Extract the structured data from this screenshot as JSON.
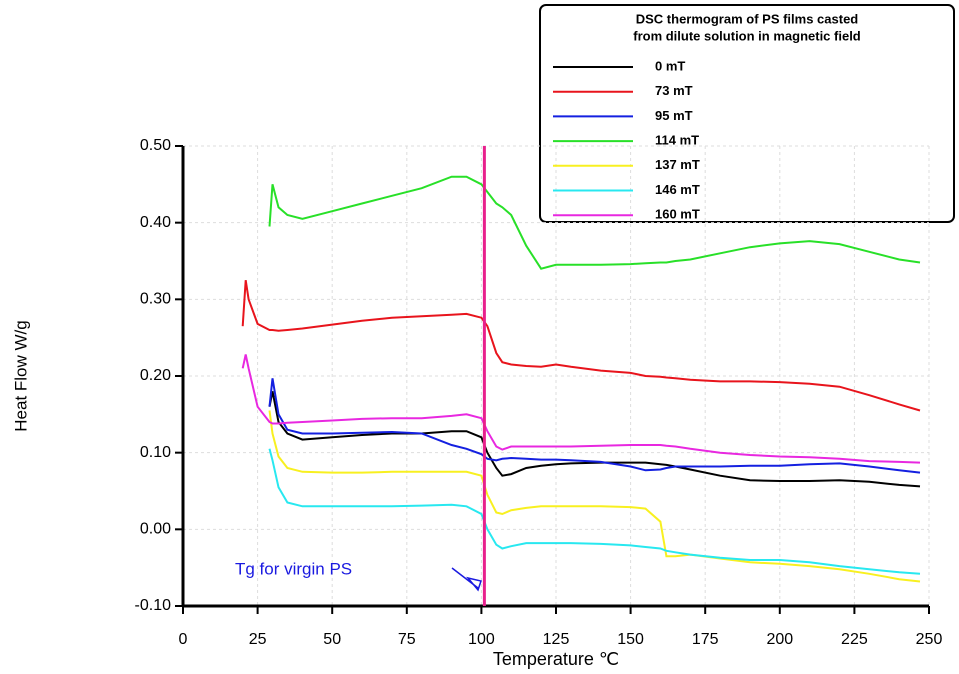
{
  "chart_data": {
    "type": "line",
    "legend_title": [
      "DSC thermogram of PS films casted",
      "from dilute solution in magnetic field"
    ],
    "x_label": "Temperature ℃",
    "y_label": "Heat Flow  W/g",
    "annotation": "Tg for virgin PS",
    "reference_line_x": 101,
    "reference_line_color": "#e8208c",
    "xlim": [
      0,
      250
    ],
    "ylim": [
      -0.1,
      0.5
    ],
    "xticks": [
      0,
      25,
      50,
      75,
      100,
      125,
      150,
      175,
      200,
      225,
      250
    ],
    "yticks": [
      {
        "value": -0.1,
        "label": "-0.10"
      },
      {
        "value": 0,
        "label": "0.00"
      },
      {
        "value": 0.1,
        "label": "0.10"
      },
      {
        "value": 0.2,
        "label": "0.20"
      },
      {
        "value": 0.3,
        "label": "0.30"
      },
      {
        "value": 0.4,
        "label": "0.40"
      },
      {
        "value": 0.5,
        "label": "0.50"
      }
    ],
    "grid": true,
    "legend_position": "top-right",
    "x": [
      20,
      21,
      22,
      25,
      29,
      30,
      32,
      35,
      40,
      50,
      60,
      70,
      80,
      90,
      95,
      100,
      102,
      105,
      107,
      110,
      115,
      120,
      125,
      130,
      140,
      150,
      155,
      160,
      162,
      165,
      170,
      180,
      190,
      200,
      210,
      220,
      230,
      240,
      247
    ],
    "series": [
      {
        "name": "0 mT",
        "color": "#000000",
        "values": [
          null,
          null,
          null,
          null,
          0.16,
          0.18,
          0.14,
          0.125,
          0.117,
          0.12,
          0.123,
          0.125,
          0.125,
          0.128,
          0.128,
          0.12,
          0.1,
          0.08,
          0.07,
          0.072,
          0.08,
          0.083,
          0.085,
          0.086,
          0.087,
          0.087,
          0.087,
          0.085,
          0.084,
          0.082,
          0.078,
          0.07,
          0.064,
          0.063,
          0.063,
          0.064,
          0.062,
          0.058,
          0.056
        ]
      },
      {
        "name": "73 mT",
        "color": "#e8141c",
        "values": [
          0.265,
          0.325,
          0.3,
          0.268,
          0.26,
          0.26,
          0.259,
          0.26,
          0.262,
          0.267,
          0.272,
          0.276,
          0.278,
          0.28,
          0.281,
          0.276,
          0.265,
          0.23,
          0.218,
          0.215,
          0.213,
          0.212,
          0.215,
          0.212,
          0.207,
          0.204,
          0.2,
          0.199,
          0.198,
          0.197,
          0.195,
          0.193,
          0.193,
          0.192,
          0.19,
          0.186,
          0.175,
          0.163,
          0.155
        ]
      },
      {
        "name": "95 mT",
        "color": "#1420e0",
        "values": [
          null,
          null,
          null,
          null,
          0.16,
          0.197,
          0.15,
          0.13,
          0.125,
          0.125,
          0.126,
          0.127,
          0.125,
          0.11,
          0.105,
          0.098,
          0.092,
          0.09,
          0.092,
          0.093,
          0.092,
          0.091,
          0.091,
          0.09,
          0.088,
          0.082,
          0.077,
          0.078,
          0.08,
          0.082,
          0.082,
          0.082,
          0.083,
          0.083,
          0.085,
          0.086,
          0.082,
          0.077,
          0.074
        ]
      },
      {
        "name": "114 mT",
        "color": "#28e028",
        "values": [
          null,
          null,
          null,
          null,
          0.395,
          0.45,
          0.42,
          0.41,
          0.405,
          0.415,
          0.425,
          0.435,
          0.445,
          0.46,
          0.46,
          0.45,
          0.44,
          0.425,
          0.42,
          0.41,
          0.37,
          0.34,
          0.345,
          0.345,
          0.345,
          0.346,
          0.347,
          0.348,
          0.348,
          0.35,
          0.352,
          0.36,
          0.368,
          0.373,
          0.376,
          0.372,
          0.362,
          0.352,
          0.348
        ]
      },
      {
        "name": "137 mT",
        "color": "#f8f020",
        "values": [
          null,
          null,
          null,
          null,
          0.155,
          0.125,
          0.095,
          0.08,
          0.075,
          0.074,
          0.074,
          0.075,
          0.075,
          0.075,
          0.075,
          0.07,
          0.045,
          0.022,
          0.02,
          0.025,
          0.028,
          0.03,
          0.03,
          0.03,
          0.03,
          0.029,
          0.027,
          0.01,
          -0.035,
          -0.035,
          -0.033,
          -0.038,
          -0.043,
          -0.045,
          -0.048,
          -0.052,
          -0.058,
          -0.065,
          -0.068
        ]
      },
      {
        "name": "146 mT",
        "color": "#28e8f0",
        "values": [
          null,
          null,
          null,
          null,
          0.105,
          0.09,
          0.055,
          0.035,
          0.03,
          0.03,
          0.03,
          0.03,
          0.031,
          0.032,
          0.03,
          0.02,
          0.0,
          -0.02,
          -0.025,
          -0.022,
          -0.018,
          -0.018,
          -0.018,
          -0.018,
          -0.019,
          -0.021,
          -0.023,
          -0.025,
          -0.028,
          -0.03,
          -0.033,
          -0.037,
          -0.04,
          -0.04,
          -0.043,
          -0.048,
          -0.052,
          -0.056,
          -0.058
        ]
      },
      {
        "name": "160 mT",
        "color": "#e828e0",
        "values": [
          0.21,
          0.228,
          0.21,
          0.16,
          0.14,
          0.138,
          0.138,
          0.139,
          0.14,
          0.142,
          0.144,
          0.145,
          0.145,
          0.148,
          0.15,
          0.145,
          0.128,
          0.108,
          0.104,
          0.108,
          0.108,
          0.108,
          0.108,
          0.108,
          0.109,
          0.11,
          0.11,
          0.11,
          0.109,
          0.108,
          0.105,
          0.1,
          0.097,
          0.095,
          0.094,
          0.092,
          0.089,
          0.088,
          0.087
        ]
      }
    ]
  }
}
